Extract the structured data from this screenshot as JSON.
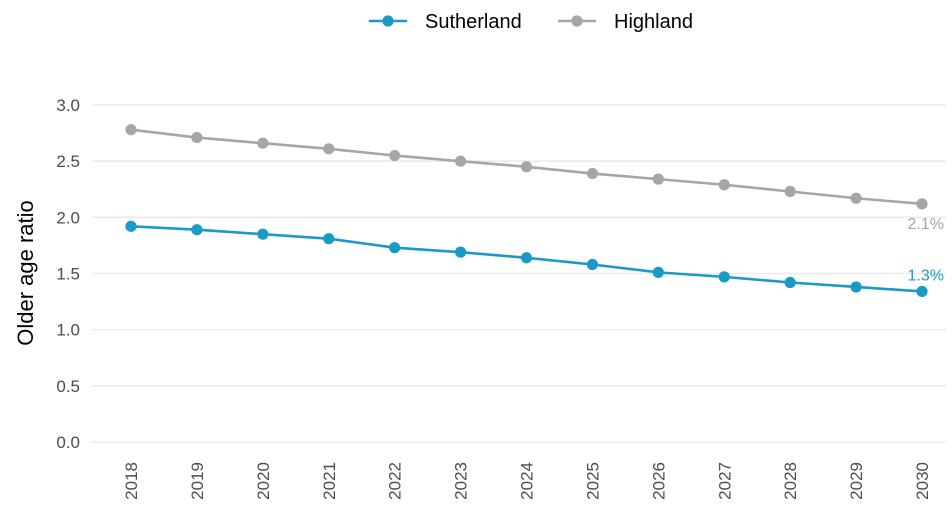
{
  "chart_data": {
    "type": "line",
    "title": "",
    "xlabel": "",
    "ylabel": "Older age ratio",
    "categories": [
      "2018",
      "2019",
      "2020",
      "2021",
      "2022",
      "2023",
      "2024",
      "2025",
      "2026",
      "2027",
      "2028",
      "2029",
      "2030"
    ],
    "ylim": [
      0,
      3.0
    ],
    "yticks": [
      "0.0",
      "0.5",
      "1.0",
      "1.5",
      "2.0",
      "2.5",
      "3.0"
    ],
    "grid": "horizontal",
    "legend_position": "top",
    "series": [
      {
        "name": "Sutherland",
        "color": "#1b9ac7",
        "values": [
          1.92,
          1.89,
          1.85,
          1.81,
          1.73,
          1.69,
          1.64,
          1.58,
          1.51,
          1.47,
          1.42,
          1.38,
          1.34
        ],
        "end_label": "1.3%"
      },
      {
        "name": "Highland",
        "color": "#a6a6a6",
        "values": [
          2.78,
          2.71,
          2.66,
          2.61,
          2.55,
          2.5,
          2.45,
          2.39,
          2.34,
          2.29,
          2.23,
          2.17,
          2.12
        ],
        "end_label": "2.1%"
      }
    ]
  }
}
